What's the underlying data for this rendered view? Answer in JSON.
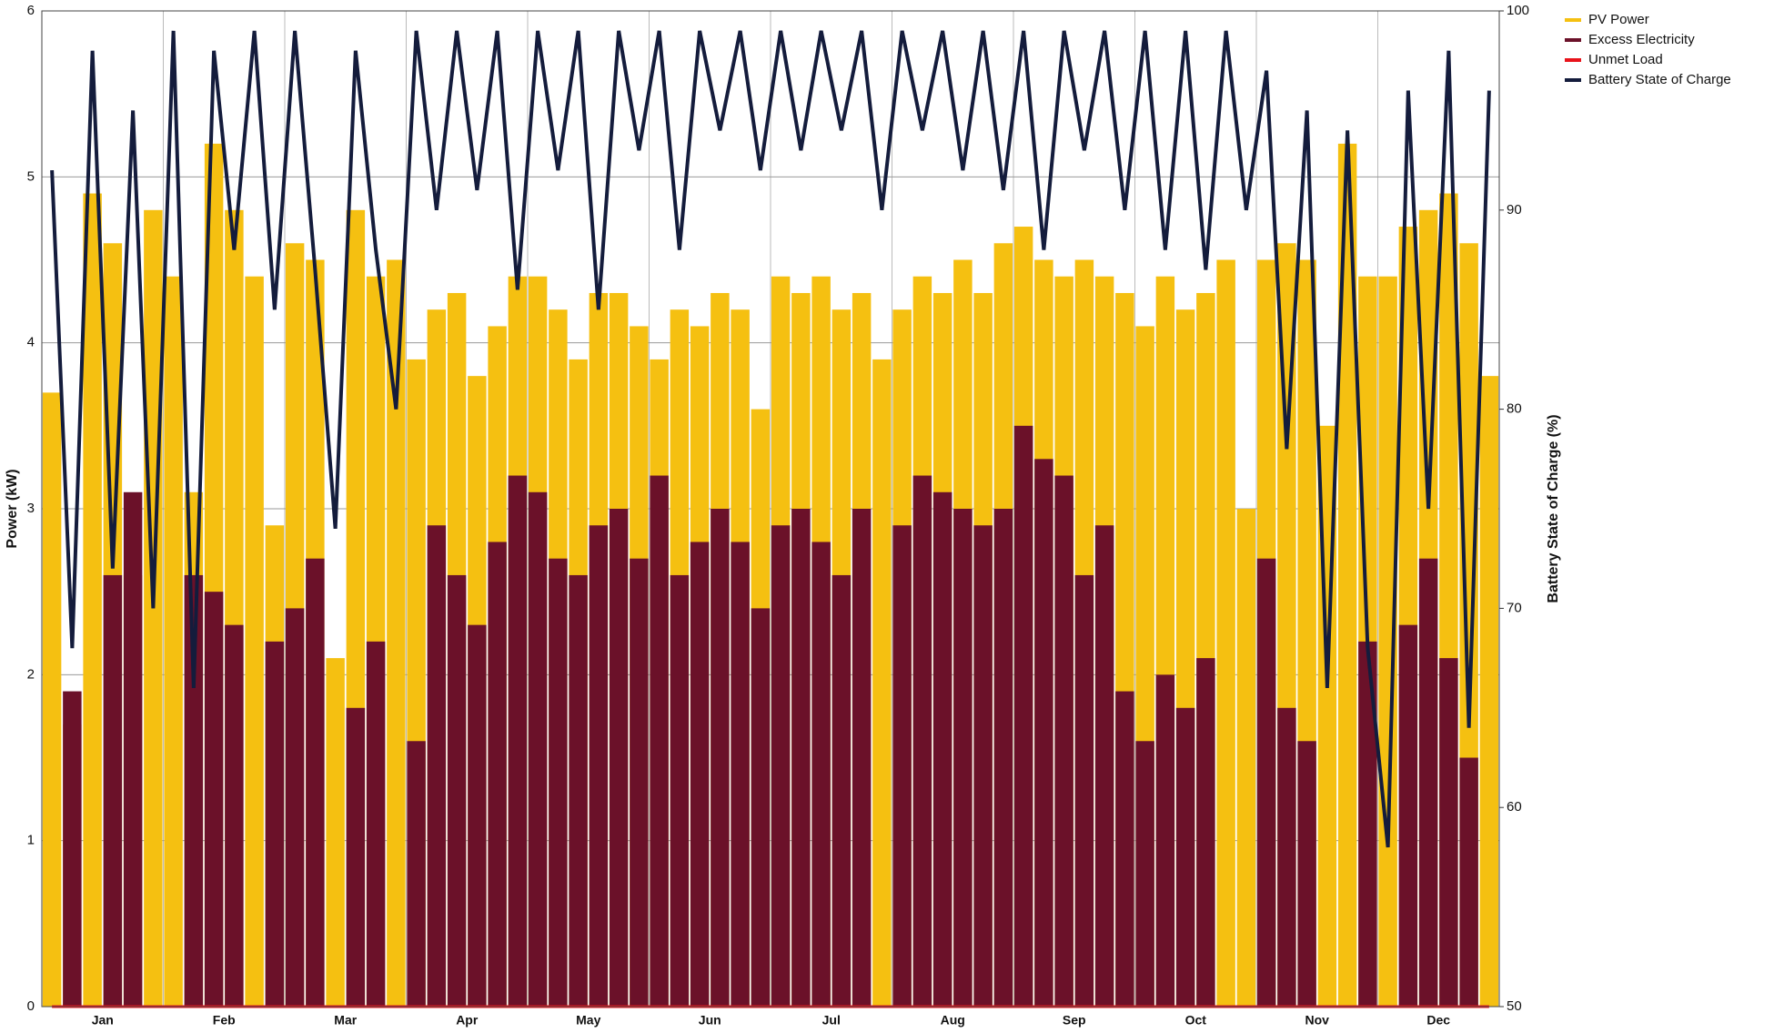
{
  "chart_data": {
    "type": "bar",
    "y_label": "Power (kW)",
    "y2_label": "Battery State of Charge (%)",
    "categories": [
      null,
      null,
      null,
      "Jan",
      null,
      null,
      null,
      null,
      null,
      "Feb",
      null,
      null,
      null,
      null,
      null,
      "Mar",
      null,
      null,
      null,
      null,
      null,
      "Apr",
      null,
      null,
      null,
      null,
      null,
      "May",
      null,
      null,
      null,
      null,
      null,
      "Jun",
      null,
      null,
      null,
      null,
      null,
      "Jul",
      null,
      null,
      null,
      null,
      null,
      "Aug",
      null,
      null,
      null,
      null,
      null,
      "Sep",
      null,
      null,
      null,
      null,
      null,
      "Oct",
      null,
      null,
      null,
      null,
      null,
      "Nov",
      null,
      null,
      null,
      null,
      null,
      "Dec",
      null,
      null
    ],
    "series": [
      {
        "name": "PV Power",
        "color": "#f5c011",
        "values": [
          3.7,
          1.7,
          4.9,
          4.6,
          2.6,
          4.8,
          4.4,
          3.1,
          5.2,
          4.8,
          4.4,
          2.9,
          4.6,
          4.5,
          2.1,
          4.8,
          4.4,
          4.5,
          3.9,
          4.2,
          4.3,
          3.8,
          4.1,
          4.4,
          4.4,
          4.2,
          3.9,
          4.3,
          4.3,
          4.1,
          3.9,
          4.2,
          4.1,
          4.3,
          4.2,
          3.6,
          4.4,
          4.3,
          4.4,
          4.2,
          4.3,
          3.9,
          4.2,
          4.4,
          4.3,
          4.5,
          4.3,
          4.6,
          4.7,
          4.5,
          4.4,
          4.5,
          4.4,
          4.3,
          4.1,
          4.4,
          4.2,
          4.3,
          4.5,
          3.0,
          4.5,
          4.6,
          4.5,
          3.5,
          5.2,
          4.4,
          4.4,
          4.7,
          4.8,
          4.9,
          4.6,
          3.8
        ]
      },
      {
        "name": "Excess Electricity",
        "color": "#6b1129",
        "values": [
          0,
          1.9,
          0,
          2.6,
          3.1,
          0,
          0,
          2.6,
          2.5,
          2.3,
          0,
          2.2,
          2.4,
          2.7,
          0,
          1.8,
          2.2,
          0,
          1.6,
          2.9,
          2.6,
          2.3,
          2.8,
          3.2,
          3.1,
          2.7,
          2.6,
          2.9,
          3.0,
          2.7,
          3.2,
          2.6,
          2.8,
          3.0,
          2.8,
          2.4,
          2.9,
          3.0,
          2.8,
          2.6,
          3.0,
          0,
          2.9,
          3.2,
          3.1,
          3.0,
          2.9,
          3.0,
          3.5,
          3.3,
          3.2,
          2.6,
          2.9,
          1.9,
          1.6,
          2.0,
          1.8,
          2.1,
          0,
          0,
          2.7,
          1.8,
          1.6,
          0,
          0,
          2.2,
          0,
          2.3,
          2.7,
          2.1,
          1.5,
          0
        ]
      },
      {
        "name": "Unmet Load",
        "color": "#e8131b",
        "values": [
          0,
          0,
          0,
          0,
          0,
          0,
          0,
          0,
          0,
          0,
          0,
          0,
          0,
          0,
          0,
          0,
          0,
          0,
          0,
          0,
          0,
          0,
          0,
          0,
          0,
          0,
          0,
          0,
          0,
          0,
          0,
          0,
          0,
          0,
          0,
          0,
          0,
          0,
          0,
          0,
          0,
          0,
          0,
          0,
          0,
          0,
          0,
          0,
          0,
          0,
          0,
          0,
          0,
          0,
          0,
          0,
          0,
          0,
          0,
          0,
          0,
          0,
          0,
          0,
          0,
          0,
          0,
          0,
          0,
          0,
          0,
          0
        ]
      },
      {
        "name": "Battery State of Charge",
        "color": "#141c3c",
        "axis": "y2",
        "values": [
          92,
          68,
          98,
          72,
          95,
          70,
          99,
          66,
          98,
          88,
          99,
          85,
          99,
          87,
          74,
          98,
          88,
          80,
          99,
          90,
          99,
          91,
          99,
          86,
          99,
          92,
          99,
          85,
          99,
          93,
          99,
          88,
          99,
          94,
          99,
          92,
          99,
          93,
          99,
          94,
          99,
          90,
          99,
          94,
          99,
          92,
          99,
          91,
          99,
          88,
          99,
          93,
          99,
          90,
          99,
          88,
          99,
          87,
          99,
          90,
          97,
          78,
          95,
          66,
          94,
          68,
          58,
          96,
          75,
          98,
          64,
          96
        ]
      }
    ],
    "ylim": [
      0,
      6
    ],
    "yticks": [
      0,
      1,
      2,
      3,
      4,
      5,
      6
    ],
    "y2lim": [
      50,
      100
    ],
    "y2ticks": [
      50,
      60,
      70,
      80,
      90,
      100
    ],
    "grid": true,
    "legend": "top-right"
  }
}
